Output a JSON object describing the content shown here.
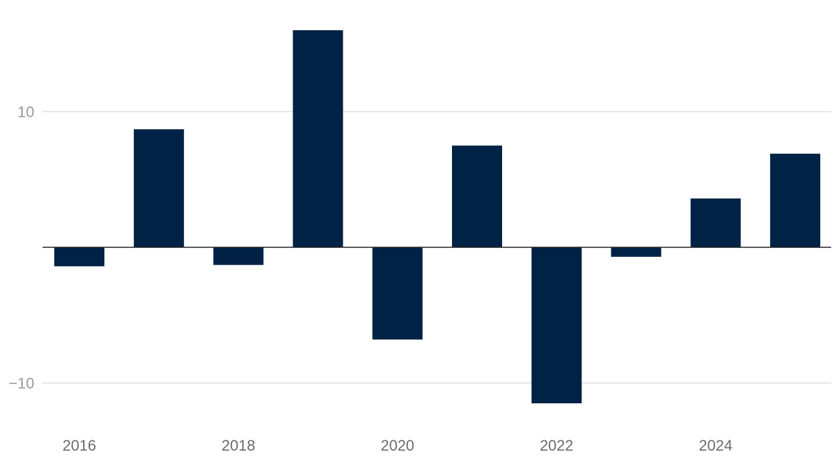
{
  "chart_data": {
    "type": "bar",
    "x": [
      2016,
      2017,
      2018,
      2019,
      2020,
      2021,
      2022,
      2023,
      2024,
      2025
    ],
    "values": [
      -1.4,
      8.7,
      -1.3,
      16.0,
      -6.8,
      7.5,
      -11.5,
      -0.7,
      3.6,
      6.9
    ],
    "x_tick_labels": [
      "2016",
      "2018",
      "2020",
      "2022",
      "2024"
    ],
    "y_ticks": [
      10,
      -10
    ],
    "y_tick_labels": [
      "10",
      "−10"
    ],
    "ylim": [
      -13.5,
      18.0
    ],
    "grid": "horizontal",
    "colors": {
      "bar": "#002244",
      "gridline": "#dddddd",
      "zero_line": "#222222",
      "y_tick_text": "#9a9a9a",
      "x_tick_text": "#6b6b6b"
    }
  }
}
